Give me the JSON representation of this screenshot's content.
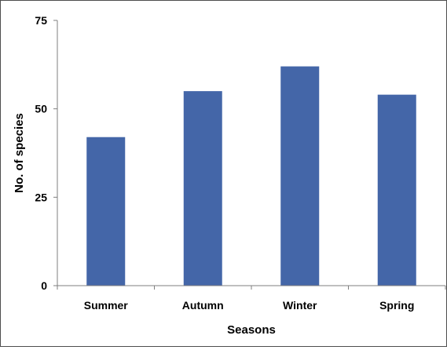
{
  "chart_data": {
    "type": "bar",
    "title": "",
    "categories": [
      "Summer",
      "Autumn",
      "Winter",
      "Spring"
    ],
    "values": [
      42,
      55,
      62,
      54
    ],
    "xlabel": "Seasons",
    "ylabel": "No. of species",
    "ylim": [
      0,
      75
    ],
    "yticks": [
      0,
      25,
      50,
      75
    ],
    "ytick_labels": [
      "0",
      "25",
      "50",
      "75"
    ],
    "grid": false,
    "legend": "none",
    "bar_color": "#4466a8"
  }
}
